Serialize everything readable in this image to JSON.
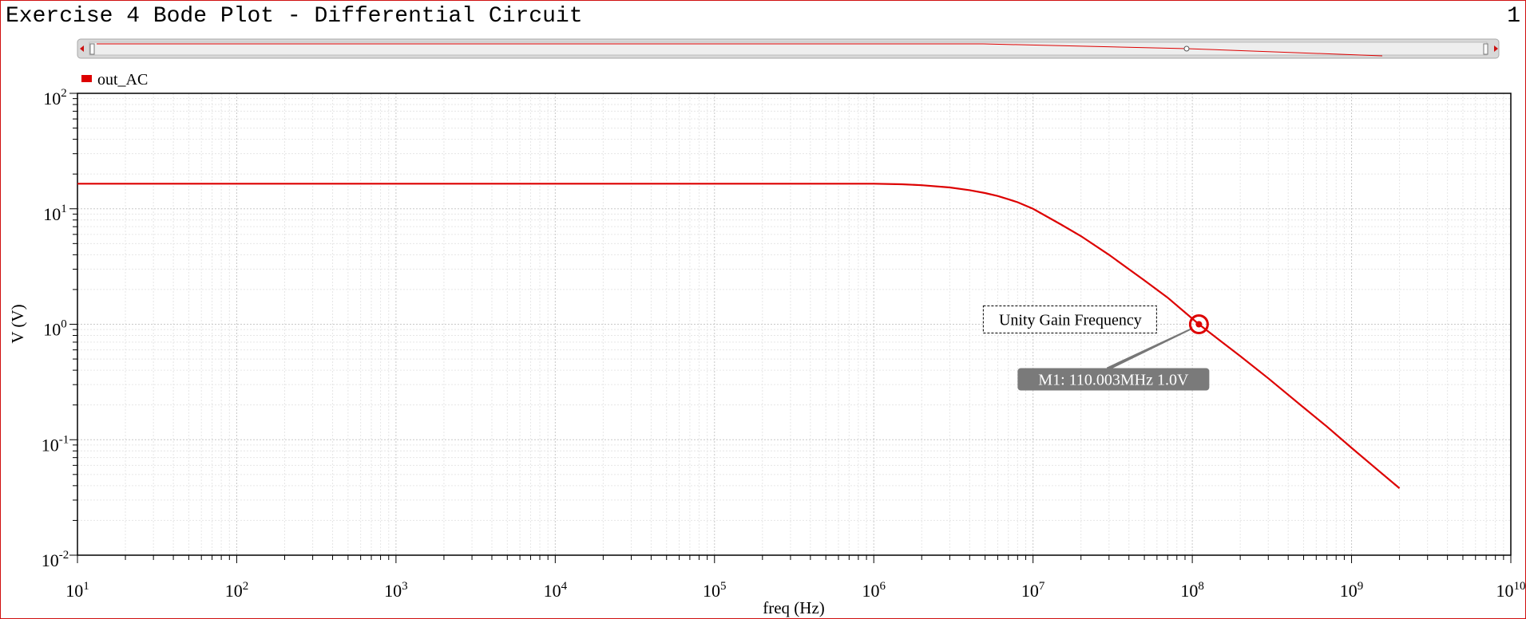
{
  "window": {
    "title": "Exercise 4 Bode Plot - Differential Circuit",
    "page_number": "1"
  },
  "colors": {
    "trace": "#dd0000",
    "grid_major": "#c8c8c8",
    "grid_minor": "#e6e6e6",
    "marker_label_bg": "#7a7a7a",
    "scrollbar_track": "#d8d8d8"
  },
  "chart_data": {
    "type": "line",
    "title": "Exercise 4 Bode Plot - Differential Circuit",
    "xlabel": "freq (Hz)",
    "ylabel": "V (V)",
    "xscale": "log",
    "yscale": "log",
    "xlim": [
      10,
      10000000000
    ],
    "ylim": [
      0.01,
      100
    ],
    "grid": true,
    "legend_position": "top-left",
    "x_ticks": [
      {
        "base": "10",
        "exp": "1"
      },
      {
        "base": "10",
        "exp": "2"
      },
      {
        "base": "10",
        "exp": "3"
      },
      {
        "base": "10",
        "exp": "4"
      },
      {
        "base": "10",
        "exp": "5"
      },
      {
        "base": "10",
        "exp": "6"
      },
      {
        "base": "10",
        "exp": "7"
      },
      {
        "base": "10",
        "exp": "8"
      },
      {
        "base": "10",
        "exp": "9"
      },
      {
        "base": "10",
        "exp": "10"
      }
    ],
    "y_ticks": [
      {
        "base": "10",
        "exp": "2"
      },
      {
        "base": "10",
        "exp": "1"
      },
      {
        "base": "10",
        "exp": "0"
      },
      {
        "base": "10",
        "exp": "-1"
      },
      {
        "base": "10",
        "exp": "-2"
      }
    ],
    "series": [
      {
        "name": "out_AC",
        "color": "#dd0000",
        "x": [
          10,
          1000000,
          1500000,
          2000000,
          3000000,
          4000000,
          5000000,
          6000000,
          7000000,
          8000000,
          10000000,
          15000000,
          20000000,
          30000000,
          50000000,
          70000000,
          110000000,
          150000000,
          200000000,
          300000000,
          500000000,
          700000000,
          1000000000,
          1500000000,
          2000000000
        ],
        "y": [
          16.5,
          16.5,
          16.3,
          16.0,
          15.3,
          14.5,
          13.7,
          12.9,
          12.1,
          11.4,
          10.0,
          7.3,
          5.8,
          4.0,
          2.4,
          1.7,
          1.0,
          0.72,
          0.53,
          0.34,
          0.19,
          0.13,
          0.085,
          0.053,
          0.038
        ]
      }
    ],
    "marker": {
      "id": "M1",
      "x": 110003000,
      "y": 1.0,
      "label": "M1: 110.003MHz 1.0V",
      "annotation": "Unity Gain Frequency"
    }
  }
}
